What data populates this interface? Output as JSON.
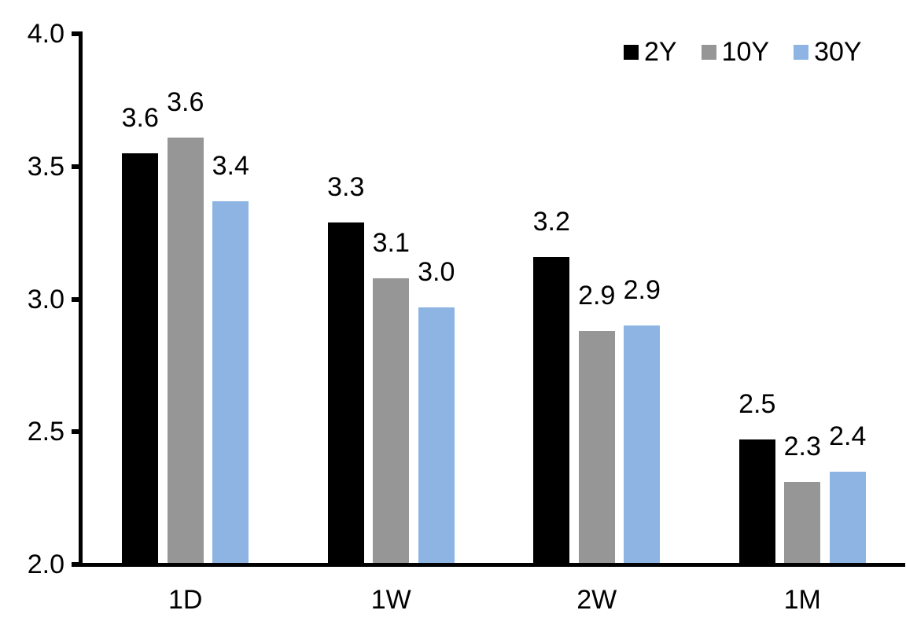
{
  "chart_data": {
    "type": "bar",
    "title": "",
    "xlabel": "",
    "ylabel": "",
    "categories": [
      "1D",
      "1W",
      "2W",
      "1M"
    ],
    "series": [
      {
        "name": "2Y",
        "color": "#000000",
        "values": [
          3.55,
          3.29,
          3.16,
          2.47
        ],
        "data_labels": [
          "3.6",
          "3.3",
          "3.2",
          "2.5"
        ]
      },
      {
        "name": "10Y",
        "color": "#969696",
        "values": [
          3.61,
          3.08,
          2.88,
          2.31
        ],
        "data_labels": [
          "3.6",
          "3.1",
          "2.9",
          "2.3"
        ]
      },
      {
        "name": "30Y",
        "color": "#8db4e3",
        "values": [
          3.37,
          2.97,
          2.9,
          2.35
        ],
        "data_labels": [
          "3.4",
          "3.0",
          "2.9",
          "2.4"
        ]
      }
    ],
    "ylim": [
      2.0,
      4.0
    ],
    "yticks": [
      {
        "value": 4.0,
        "label": "4.0"
      },
      {
        "value": 3.5,
        "label": "3.5"
      },
      {
        "value": 3.0,
        "label": "3.0"
      },
      {
        "value": 2.5,
        "label": "2.5"
      },
      {
        "value": 2.0,
        "label": "2.0"
      }
    ],
    "legend": {
      "position": "top-right",
      "entries": [
        "2Y",
        "10Y",
        "30Y"
      ]
    },
    "grid": false,
    "axis_color": "#000000",
    "text_color": "#000000",
    "background": "#ffffff"
  }
}
